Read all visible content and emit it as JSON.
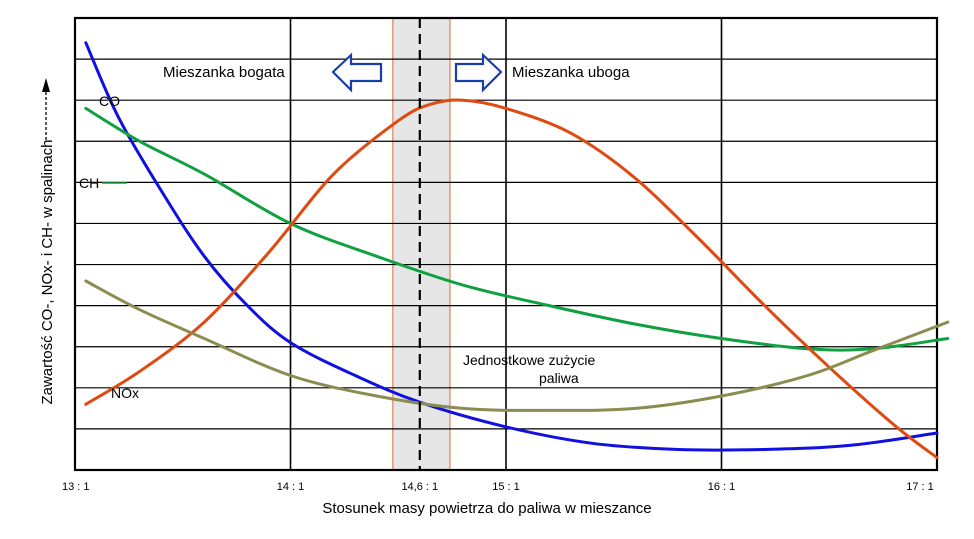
{
  "chart_data": {
    "type": "line",
    "title": "",
    "xlabel": "Stosunek masy powietrza do paliwa w mieszance",
    "ylabel": "Zawartość CO-, NOx- i CH- w spalinach",
    "xlim": [
      13,
      17
    ],
    "ylim": [
      0,
      11
    ],
    "x_ticks": [
      {
        "value": 13,
        "label": "13 : 1"
      },
      {
        "value": 14,
        "label": "14 : 1"
      },
      {
        "value": 14.6,
        "label": "14,6 : 1"
      },
      {
        "value": 15,
        "label": "15 : 1"
      },
      {
        "value": 16,
        "label": "16 : 1"
      },
      {
        "value": 17,
        "label": "17 : 1"
      }
    ],
    "stoichiometric_x": 14.6,
    "band": [
      14.475,
      14.74
    ],
    "grid": true,
    "regions": [
      {
        "label": "Mieszanka bogata",
        "direction": "left"
      },
      {
        "label": "Mieszanka uboga",
        "direction": "right"
      }
    ],
    "series": [
      {
        "name": "CO",
        "color": "#1010e0",
        "x": [
          13.05,
          13.2,
          13.4,
          13.6,
          13.8,
          14.0,
          14.3,
          14.6,
          15.0,
          15.4,
          15.8,
          16.2,
          16.6,
          17.0
        ],
        "y": [
          10.4,
          8.6,
          6.8,
          5.2,
          4.0,
          3.1,
          2.3,
          1.65,
          1.05,
          0.65,
          0.5,
          0.5,
          0.6,
          0.9
        ]
      },
      {
        "name": "CH",
        "color": "#10a040",
        "x": [
          13.05,
          13.3,
          13.6,
          14.0,
          14.4,
          14.8,
          15.2,
          15.6,
          16.0,
          16.4,
          16.7,
          17.05
        ],
        "y": [
          8.8,
          8.0,
          7.2,
          6.0,
          5.2,
          4.5,
          4.0,
          3.55,
          3.2,
          2.95,
          2.95,
          3.2
        ]
      },
      {
        "name": "NOx",
        "color": "#e04a10",
        "x": [
          13.05,
          13.3,
          13.6,
          13.9,
          14.2,
          14.5,
          14.65,
          14.8,
          15.0,
          15.3,
          15.6,
          15.9,
          16.2,
          16.5,
          16.8,
          17.0
        ],
        "y": [
          1.6,
          2.4,
          3.6,
          5.3,
          7.2,
          8.5,
          8.9,
          9.0,
          8.8,
          8.2,
          7.1,
          5.6,
          4.0,
          2.5,
          1.1,
          0.3
        ]
      },
      {
        "name": "Jednostkowe zużycie paliwa",
        "color": "#8c8c50",
        "x": [
          13.05,
          13.3,
          13.6,
          14.0,
          14.4,
          14.8,
          15.2,
          15.6,
          16.0,
          16.4,
          16.7,
          17.05
        ],
        "y": [
          4.6,
          3.9,
          3.2,
          2.3,
          1.8,
          1.5,
          1.45,
          1.5,
          1.8,
          2.3,
          2.9,
          3.6
        ]
      }
    ],
    "annotations": [
      {
        "text": "CO",
        "series": "CO"
      },
      {
        "text": "CH",
        "series": "CH"
      },
      {
        "text": "NOx",
        "series": "NOx"
      },
      {
        "text": "Jednostkowe zużycie",
        "series": "Jednostkowe zużycie paliwa"
      },
      {
        "text": "paliwa",
        "series": "Jednostkowe zużycie paliwa"
      }
    ]
  }
}
